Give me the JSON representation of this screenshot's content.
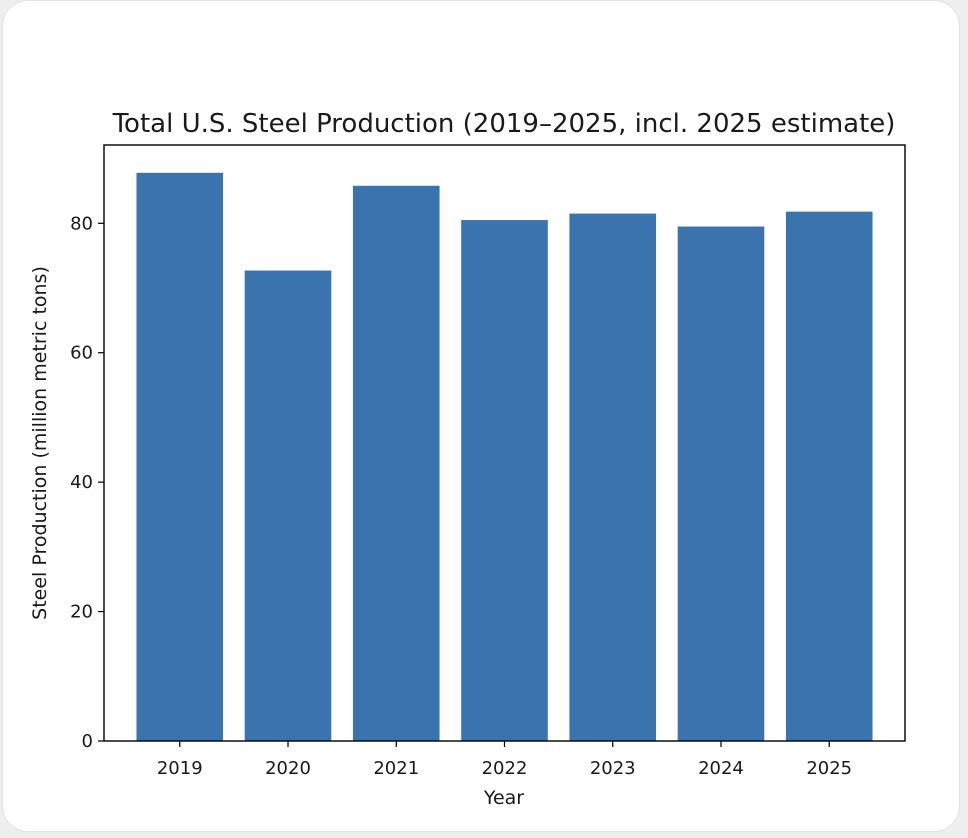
{
  "chart_data": {
    "type": "bar",
    "title": "Total U.S. Steel Production (2019–2025, incl. 2025 estimate)",
    "xlabel": "Year",
    "ylabel": "Steel Production (million metric tons)",
    "categories": [
      "2019",
      "2020",
      "2021",
      "2022",
      "2023",
      "2024",
      "2025"
    ],
    "values": [
      87.8,
      72.7,
      85.8,
      80.5,
      81.5,
      79.5,
      81.8
    ],
    "ylim": [
      0,
      92.1
    ],
    "yticks": [
      0,
      20,
      40,
      60,
      80
    ],
    "grid": false,
    "bar_color": "#3a73ae"
  }
}
